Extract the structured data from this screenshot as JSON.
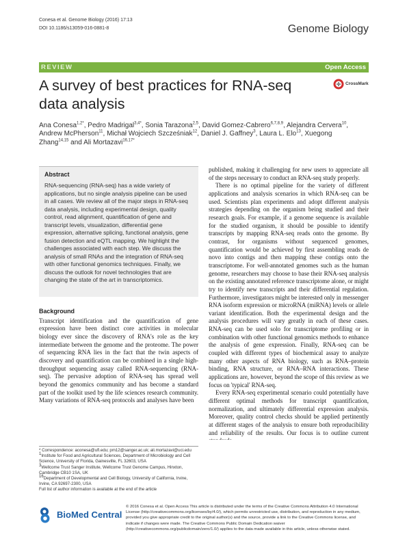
{
  "header": {
    "citation": "Conesa et al. Genome Biology (2016) 17:13",
    "doi": "DOI 10.1186/s13059-016-0881-8",
    "journal": "Genome Biology"
  },
  "banner": {
    "type": "REVIEW",
    "access": "Open Access"
  },
  "title": "A survey of best practices for RNA-seq data analysis",
  "crossmark": "CrossMark",
  "authors": [
    {
      "name": "Ana Conesa",
      "sup": "1,2*",
      "after": ","
    },
    {
      "name": "Pedro Madrigal",
      "sup": "3,4*",
      "after": ","
    },
    {
      "name": "Sonia Tarazona",
      "sup": "2,5",
      "after": ","
    },
    {
      "name": "David Gomez-Cabrero",
      "sup": "6,7,8,9",
      "after": ","
    },
    {
      "name": "Alejandra Cervera",
      "sup": "10",
      "after": ","
    },
    {
      "name": "Andrew McPherson",
      "sup": "11",
      "after": ","
    },
    {
      "name": "Michał Wojciech Szcześniak",
      "sup": "12",
      "after": ","
    },
    {
      "name": "Daniel J. Gaffney",
      "sup": "3",
      "after": ","
    },
    {
      "name": "Laura L. Elo",
      "sup": "13",
      "after": ","
    },
    {
      "name": "Xuegong Zhang",
      "sup": "14,15",
      "after": "and"
    },
    {
      "name": "Ali Mortazavi",
      "sup": "16,17*"
    }
  ],
  "abstract": {
    "heading": "Abstract",
    "text": "RNA-sequencing (RNA-seq) has a wide variety of applications, but no single analysis pipeline can be used in all cases. We review all of the major steps in RNA-seq data analysis, including experimental design, quality control, read alignment, quantification of gene and transcript levels, visualization, differential gene expression, alternative splicing, functional analysis, gene fusion detection and eQTL mapping. We highlight the challenges associated with each step. We discuss the analysis of small RNAs and the integration of RNA-seq with other functional genomics techniques. Finally, we discuss the outlook for novel technologies that are changing the state of the art in transcriptomics."
  },
  "background": {
    "heading": "Background",
    "text": "Transcript identification and the quantification of gene expression have been distinct core activities in molecular biology ever since the discovery of RNA's role as the key intermediate between the genome and the proteome. The power of sequencing RNA lies in the fact that the twin aspects of discovery and quantification can be combined in a single high-throughput sequencing assay called RNA-sequencing (RNA-seq). The pervasive adoption of RNA-seq has spread well beyond the genomics community and has become a standard part of the toolkit used by the life sciences research community. Many variations of RNA-seq protocols and analyses have been"
  },
  "right_column": [
    "published, making it challenging for new users to appreciate all of the steps necessary to conduct an RNA-seq study properly.",
    "There is no optimal pipeline for the variety of different applications and analysis scenarios in which RNA-seq can be used. Scientists plan experiments and adopt different analysis strategies depending on the organism being studied and their research goals. For example, if a genome sequence is available for the studied organism, it should be possible to identify transcripts by mapping RNA-seq reads onto the genome. By contrast, for organisms without sequenced genomes, quantification would be achieved by first assembling reads de novo into contigs and then mapping these contigs onto the transcriptome. For well-annotated genomes such as the human genome, researchers may choose to base their RNA-seq analysis on the existing annotated reference transcriptome alone, or might try to identify new transcripts and their differential regulation. Furthermore, investigators might be interested only in messenger RNA isoform expression or microRNA (miRNA) levels or allele variant identification. Both the experimental design and the analysis procedures will vary greatly in each of these cases. RNA-seq can be used solo for transcriptome profiling or in combination with other functional genomics methods to enhance the analysis of gene expression. Finally, RNA-seq can be coupled with different types of biochemical assay to analyze many other aspects of RNA biology, such as RNA–protein binding, RNA structure, or RNA–RNA interactions. These applications are, however, beyond the scope of this review as we focus on 'typical' RNA-seq.",
    "Every RNA-seq experimental scenario could potentially have different optimal methods for transcript quantification, normalization, and ultimately differential expression analysis. Moreover, quality control checks should be applied pertinently at different stages of the analysis to ensure both reproducibility and reliability of the results. Our focus is to outline current standards"
  ],
  "footnotes": [
    {
      "mark": "*",
      "text": "Correspondence: aconesa@ufl.edu; pm12@sanger.ac.uk; ali.mortazavi@uci.edu"
    },
    {
      "mark": "1",
      "text": "Institute for Food and Agricultural Sciences, Department of Microbiology and Cell Science, University of Florida, Gainesville, FL 32603, USA"
    },
    {
      "mark": "3",
      "text": "Wellcome Trust Sanger Institute, Wellcome Trust Genome Campus, Hinxton, Cambridge CB10 1SA, UK"
    },
    {
      "mark": "16",
      "text": "Department of Developmental and Cell Biology, University of California, Irvine, Irvine, CA 92697-2300, USA"
    },
    {
      "text": "Full list of author information is available at the end of the article"
    }
  ],
  "publisher": "BioMed Central",
  "license": "© 2016 Conesa et al. Open Access This article is distributed under the terms of the Creative Commons Attribution 4.0 International License (http://creativecommons.org/licenses/by/4.0/), which permits unrestricted use, distribution, and reproduction in any medium, provided you give appropriate credit to the original author(s) and the source, provide a link to the Creative Commons license, and indicate if changes were made. The Creative Commons Public Domain Dedication waiver (http://creativecommons.org/publicdomain/zero/1.0/) applies to the data made available in this article, unless otherwise stated."
}
